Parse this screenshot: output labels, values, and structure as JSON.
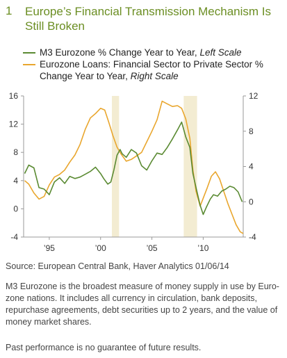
{
  "header": {
    "number": "1",
    "title": "Europe’s Financial Transmission Mechanism Is Still Broken"
  },
  "source": "Source: European Central Bank, Haver Analytics   01/06/14",
  "note": "M3 Eurozone is the broadest measure of money supply in use by Euro-zone nations. It includes all currency in circulation, bank deposits, repurchase agreements, debt securities up to 2 years, and the value of money market shares.",
  "disclaimer": "Past performance is no guarantee of future results.",
  "chart_data": {
    "type": "line",
    "title": "Europe’s Financial Transmission Mechanism Is Still Broken",
    "x_tick_labels": [
      "’95",
      "’00",
      "’05",
      "’10"
    ],
    "x_ticks": [
      1995,
      2000,
      2005,
      2010
    ],
    "xlim": [
      1992.5,
      2013.9
    ],
    "left_axis": {
      "ylim": [
        -4,
        16
      ],
      "ticks": [
        -4,
        0,
        4,
        8,
        12,
        16
      ]
    },
    "right_axis": {
      "ylim": [
        -4,
        12
      ],
      "ticks": [
        -4,
        0,
        4,
        8,
        12
      ]
    },
    "shaded_periods": [
      [
        2001.1,
        2001.8
      ],
      [
        2008.1,
        2009.4
      ]
    ],
    "grid": false,
    "series": [
      {
        "name": "M3 Eurozone % Change Year to Year,",
        "unit_label": "Left Scale",
        "axis": "left",
        "color": "#5a8a32",
        "points": [
          [
            1992.6,
            5.0
          ],
          [
            1993.0,
            6.2
          ],
          [
            1993.5,
            5.8
          ],
          [
            1994.0,
            3.0
          ],
          [
            1994.5,
            2.8
          ],
          [
            1995.0,
            2.0
          ],
          [
            1995.5,
            3.8
          ],
          [
            1996.0,
            4.4
          ],
          [
            1996.5,
            3.6
          ],
          [
            1997.0,
            4.6
          ],
          [
            1997.5,
            4.3
          ],
          [
            1998.0,
            4.5
          ],
          [
            1998.5,
            4.9
          ],
          [
            1999.0,
            5.3
          ],
          [
            1999.5,
            5.9
          ],
          [
            2000.0,
            5.0
          ],
          [
            2000.3,
            4.3
          ],
          [
            2000.7,
            3.5
          ],
          [
            2001.0,
            3.8
          ],
          [
            2001.3,
            5.5
          ],
          [
            2001.6,
            7.6
          ],
          [
            2001.9,
            8.4
          ],
          [
            2002.1,
            7.8
          ],
          [
            2002.5,
            7.3
          ],
          [
            2003.0,
            8.4
          ],
          [
            2003.5,
            7.9
          ],
          [
            2004.0,
            6.1
          ],
          [
            2004.5,
            5.5
          ],
          [
            2005.0,
            6.8
          ],
          [
            2005.5,
            7.9
          ],
          [
            2006.0,
            7.7
          ],
          [
            2006.5,
            8.7
          ],
          [
            2007.0,
            9.9
          ],
          [
            2007.5,
            11.2
          ],
          [
            2007.9,
            12.3
          ],
          [
            2008.3,
            10.2
          ],
          [
            2008.7,
            8.7
          ],
          [
            2009.0,
            5.0
          ],
          [
            2009.3,
            3.0
          ],
          [
            2009.7,
            0.5
          ],
          [
            2010.0,
            -0.8
          ],
          [
            2010.3,
            0.2
          ],
          [
            2010.7,
            1.4
          ],
          [
            2011.0,
            2.0
          ],
          [
            2011.4,
            1.8
          ],
          [
            2011.8,
            2.5
          ],
          [
            2012.2,
            2.8
          ],
          [
            2012.6,
            3.2
          ],
          [
            2013.0,
            3.0
          ],
          [
            2013.4,
            2.4
          ],
          [
            2013.8,
            1.0
          ]
        ]
      },
      {
        "name": "Eurozone Loans: Financial Sector to Private Sector % Change Year to Year,",
        "unit_label": "Right Scale",
        "axis": "right",
        "color": "#e9a62d",
        "points": [
          [
            1992.6,
            2.4
          ],
          [
            1993.0,
            2.0
          ],
          [
            1993.5,
            1.0
          ],
          [
            1994.0,
            0.3
          ],
          [
            1994.5,
            0.6
          ],
          [
            1995.0,
            1.9
          ],
          [
            1995.5,
            2.8
          ],
          [
            1996.0,
            3.1
          ],
          [
            1996.5,
            3.6
          ],
          [
            1997.0,
            4.5
          ],
          [
            1997.5,
            5.3
          ],
          [
            1998.0,
            6.5
          ],
          [
            1998.5,
            8.2
          ],
          [
            1999.0,
            9.5
          ],
          [
            1999.5,
            10.0
          ],
          [
            2000.0,
            10.6
          ],
          [
            2000.4,
            10.4
          ],
          [
            2000.8,
            9.0
          ],
          [
            2001.2,
            7.5
          ],
          [
            2001.6,
            6.2
          ],
          [
            2002.0,
            5.4
          ],
          [
            2002.5,
            4.6
          ],
          [
            2003.0,
            4.8
          ],
          [
            2003.5,
            5.2
          ],
          [
            2004.0,
            5.6
          ],
          [
            2004.5,
            6.8
          ],
          [
            2005.0,
            8.0
          ],
          [
            2005.5,
            9.3
          ],
          [
            2006.0,
            11.4
          ],
          [
            2006.5,
            11.1
          ],
          [
            2007.0,
            10.8
          ],
          [
            2007.5,
            10.9
          ],
          [
            2007.9,
            10.6
          ],
          [
            2008.3,
            9.4
          ],
          [
            2008.7,
            7.2
          ],
          [
            2009.0,
            3.6
          ],
          [
            2009.3,
            1.2
          ],
          [
            2009.7,
            -0.5
          ],
          [
            2010.0,
            0.4
          ],
          [
            2010.4,
            1.6
          ],
          [
            2010.8,
            2.9
          ],
          [
            2011.2,
            3.4
          ],
          [
            2011.6,
            2.6
          ],
          [
            2012.0,
            1.2
          ],
          [
            2012.4,
            -0.2
          ],
          [
            2012.8,
            -1.4
          ],
          [
            2013.2,
            -2.6
          ],
          [
            2013.6,
            -3.4
          ],
          [
            2013.9,
            -3.6
          ]
        ]
      }
    ]
  }
}
